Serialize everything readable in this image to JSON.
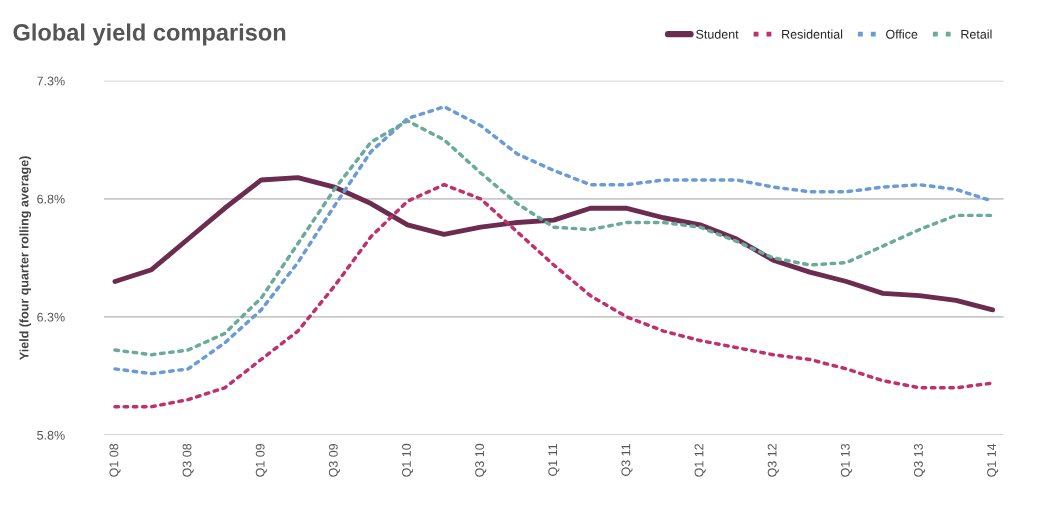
{
  "chart_data": {
    "type": "line",
    "title": "Global yield comparison",
    "ylabel": "Yield (four quarter rolling average)",
    "categories": [
      "Q1 08",
      null,
      "Q3 08",
      null,
      "Q1 09",
      null,
      "Q3 09",
      null,
      "Q1 10",
      null,
      "Q3 10",
      null,
      "Q1 11",
      null,
      "Q3 11",
      null,
      "Q1 12",
      null,
      "Q3 12",
      null,
      "Q1 13",
      null,
      "Q3 13",
      null,
      "Q1 14"
    ],
    "series": [
      {
        "name": "Student",
        "color": "#6b2c50",
        "line_style": "solid",
        "values": [
          6.45,
          6.5,
          6.63,
          6.76,
          6.88,
          6.89,
          6.85,
          6.78,
          6.69,
          6.65,
          6.68,
          6.7,
          6.71,
          6.76,
          6.76,
          6.72,
          6.69,
          6.63,
          6.54,
          6.49,
          6.45,
          6.4,
          6.39,
          6.37,
          6.33
        ]
      },
      {
        "name": "Residential",
        "color": "#c0306c",
        "line_style": "dotted",
        "values": [
          5.92,
          5.92,
          5.95,
          6.0,
          6.12,
          6.24,
          6.43,
          6.64,
          6.79,
          6.86,
          6.8,
          6.66,
          6.52,
          6.39,
          6.3,
          6.24,
          6.2,
          6.17,
          6.14,
          6.12,
          6.08,
          6.03,
          6.0,
          6.0,
          6.02
        ]
      },
      {
        "name": "Office",
        "color": "#6a9bd8",
        "line_style": "dotted",
        "values": [
          6.08,
          6.06,
          6.08,
          6.19,
          6.33,
          6.53,
          6.77,
          7.0,
          7.14,
          7.19,
          7.11,
          6.99,
          6.92,
          6.86,
          6.86,
          6.88,
          6.88,
          6.88,
          6.85,
          6.83,
          6.83,
          6.85,
          6.86,
          6.84,
          6.79
        ]
      },
      {
        "name": "Retail",
        "color": "#6aaa9a",
        "line_style": "dotted",
        "values": [
          6.16,
          6.14,
          6.16,
          6.23,
          6.38,
          6.61,
          6.84,
          7.04,
          7.13,
          7.05,
          6.91,
          6.78,
          6.68,
          6.67,
          6.7,
          6.7,
          6.68,
          6.62,
          6.55,
          6.52,
          6.53,
          6.6,
          6.67,
          6.73,
          6.73
        ]
      }
    ],
    "ylim": [
      5.8,
      7.3
    ],
    "yticks": [
      {
        "value": 5.8,
        "label": "5.8%"
      },
      {
        "value": 6.3,
        "label": "6.3%"
      },
      {
        "value": 6.8,
        "label": "6.8%"
      },
      {
        "value": 7.3,
        "label": "7.3%"
      }
    ],
    "grid": "y",
    "legend": "top right"
  }
}
